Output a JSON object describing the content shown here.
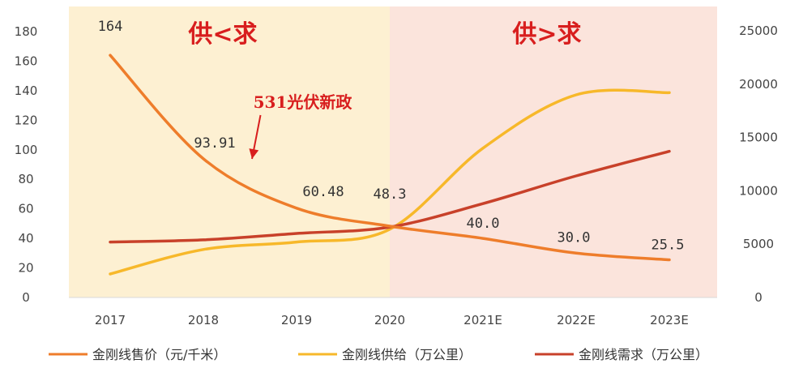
{
  "chart_data": {
    "type": "line",
    "categories": [
      "2017",
      "2018",
      "2019",
      "2020",
      "2021E",
      "2022E",
      "2023E"
    ],
    "y_left": {
      "ylim": [
        0,
        180
      ],
      "ticks": [
        "0",
        "20",
        "40",
        "60",
        "80",
        "100",
        "120",
        "140",
        "160",
        "180"
      ]
    },
    "y_right": {
      "ylim": [
        0,
        25000
      ],
      "ticks": [
        "0",
        "5000",
        "10000",
        "15000",
        "20000",
        "25000"
      ]
    },
    "series": [
      {
        "name": "金刚线售价（元/千米）",
        "axis": "left",
        "color": "#ee7d2b",
        "values": [
          164,
          93.91,
          60.48,
          48.3,
          40.0,
          30.0,
          25.5
        ],
        "labels": [
          "164",
          "93.91",
          "60.48",
          "48.3",
          "40.0",
          "30.0",
          "25.5"
        ]
      },
      {
        "name": "金刚线供给（万公里）",
        "axis": "right",
        "color": "#f7b82a",
        "values": [
          2200,
          4500,
          5200,
          6400,
          14000,
          19000,
          19200
        ]
      },
      {
        "name": "金刚线需求（万公里）",
        "axis": "right",
        "color": "#c8412a",
        "values": [
          5200,
          5400,
          6000,
          6600,
          8800,
          11400,
          13700
        ]
      }
    ],
    "regions": [
      {
        "label": "供<求",
        "from": "2017",
        "to": "2020",
        "color": "#fdf0d2"
      },
      {
        "label": "供>求",
        "from": "2020",
        "to": "2023E",
        "color": "#fbe4dc"
      }
    ],
    "annotation": {
      "text": "531光伏新政",
      "color": "#d81e1e"
    },
    "legend_position": "bottom"
  }
}
